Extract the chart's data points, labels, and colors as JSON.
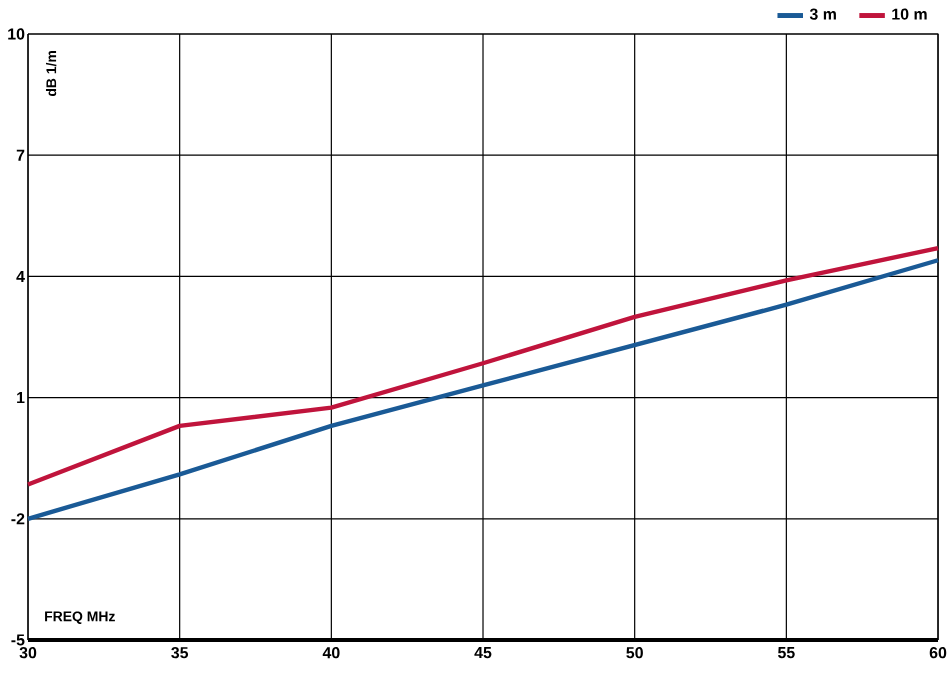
{
  "chart_data": {
    "type": "line",
    "xlabel": "FREQ  MHz",
    "ylabel": "dB 1/m",
    "x": [
      30,
      35,
      40,
      45,
      50,
      55,
      60
    ],
    "series": [
      {
        "name": "3 m",
        "color": "#1a5a96",
        "values": [
          -2,
          -0.9,
          0.3,
          1.3,
          2.3,
          3.3,
          4.4
        ]
      },
      {
        "name": "10 m",
        "color": "#c0143c",
        "values": [
          -1.15,
          0.3,
          0.75,
          1.85,
          3.0,
          3.9,
          4.7
        ]
      }
    ],
    "xlim": [
      30,
      60
    ],
    "xticks": [
      30,
      35,
      40,
      45,
      50,
      55,
      60
    ],
    "ylim": [
      -5,
      10
    ],
    "yticks": [
      -5,
      -2,
      1,
      4,
      7,
      10
    ],
    "grid": true,
    "legend": "top right",
    "marker": "none",
    "line_style": "solid"
  }
}
